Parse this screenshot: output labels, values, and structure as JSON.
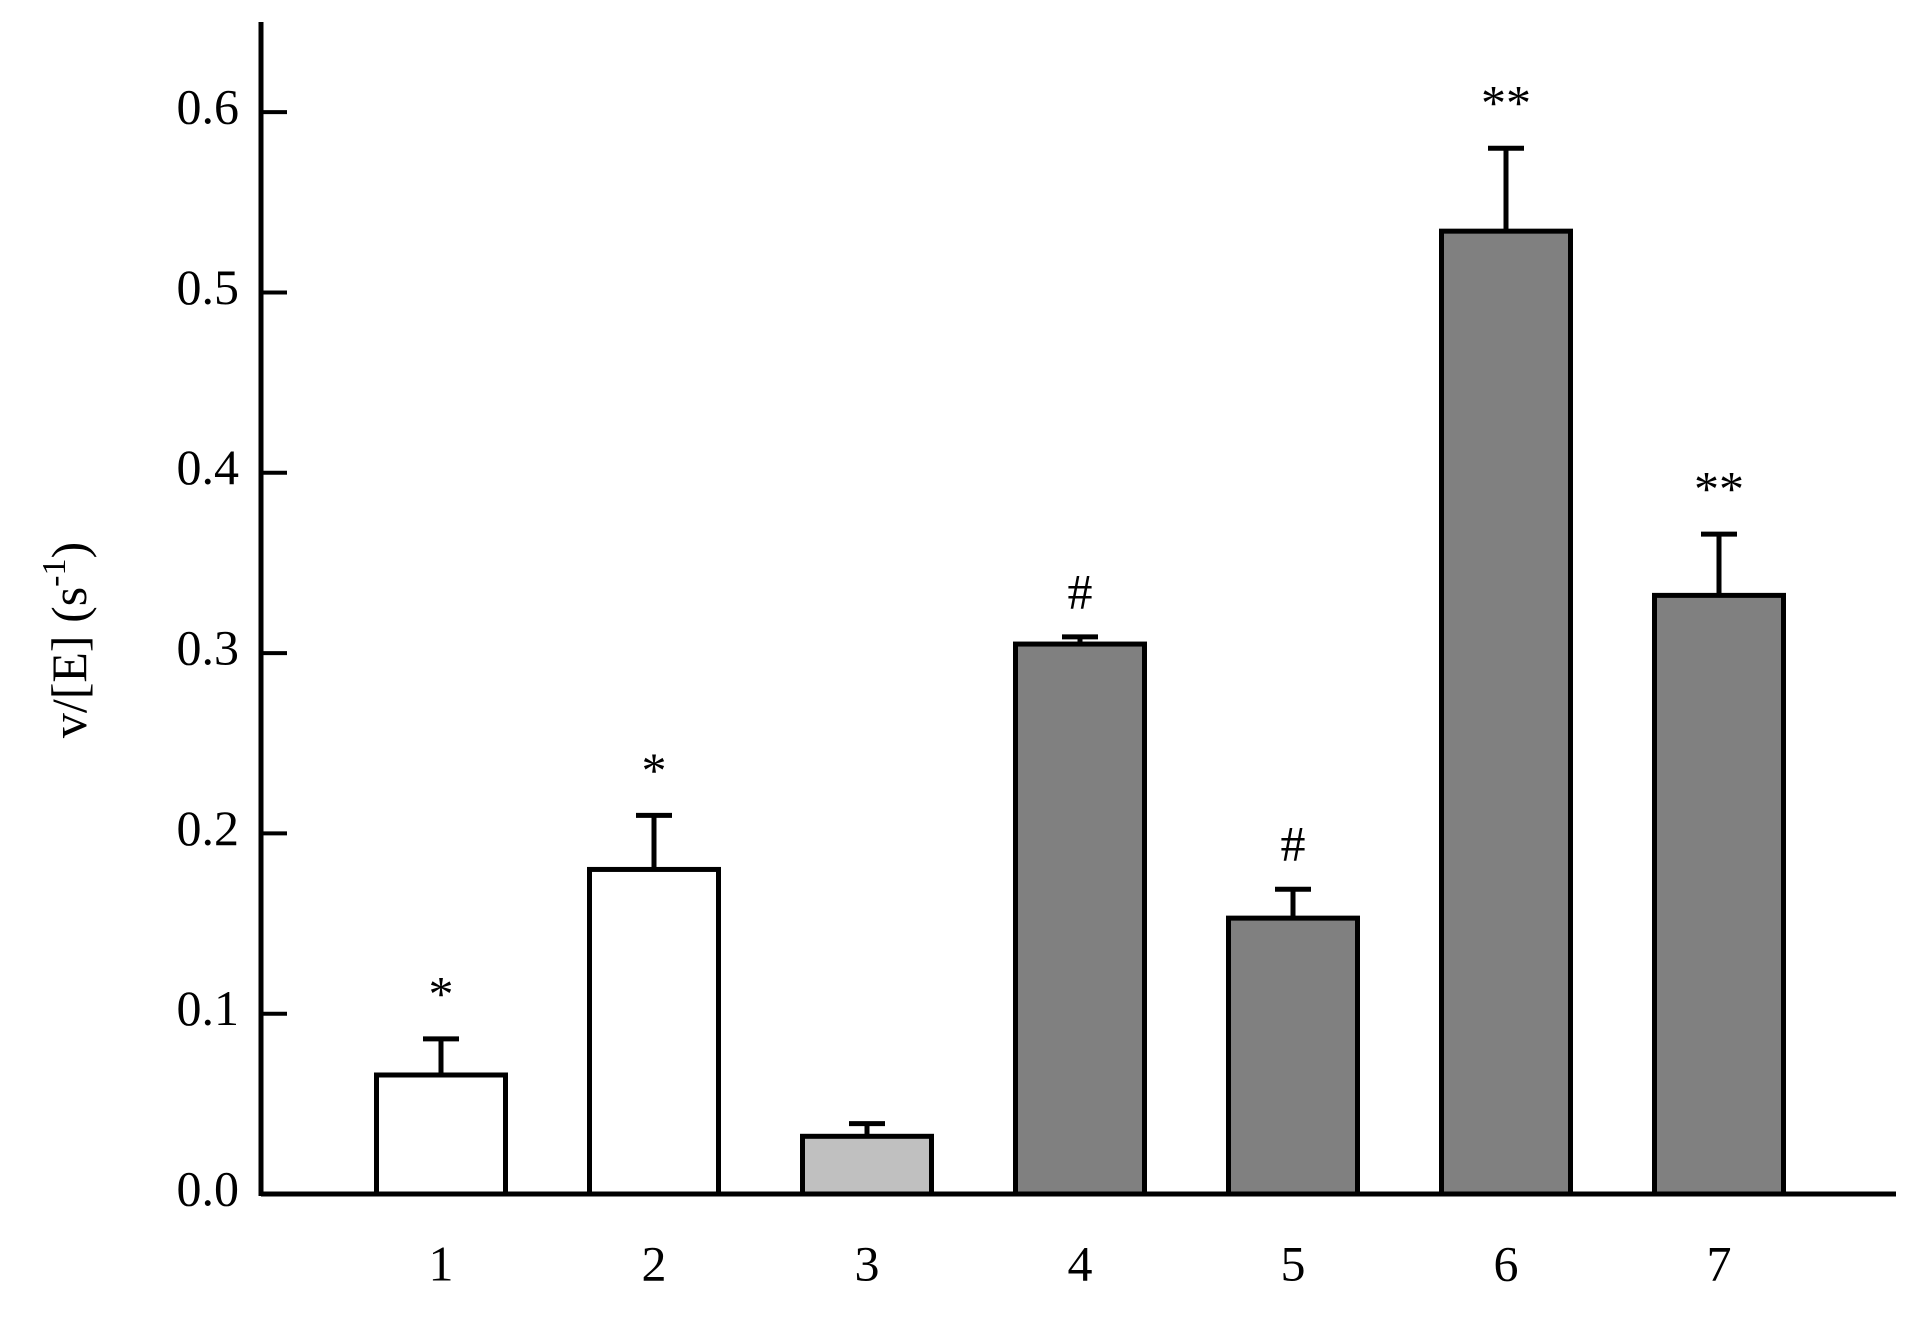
{
  "chart_data": {
    "type": "bar",
    "ylabel": "v/[E] (s",
    "ylabel_sup": "-1",
    "ylabel_end": ")",
    "categories": [
      "1",
      "2",
      "3",
      "4",
      "5",
      "6",
      "7"
    ],
    "values": [
      0.066,
      0.18,
      0.032,
      0.305,
      0.153,
      0.534,
      0.332
    ],
    "errors": [
      0.02,
      0.03,
      0.007,
      0.004,
      0.016,
      0.046,
      0.034
    ],
    "annotations": [
      "*",
      "*",
      null,
      "#",
      "#",
      "**",
      "**"
    ],
    "colors": [
      "#ffffff",
      "#ffffff",
      "#c0c0c0",
      "#808080",
      "#808080",
      "#808080",
      "#808080"
    ],
    "ylim": [
      0,
      0.65
    ],
    "yticks": [
      {
        "value": 0,
        "label": "0.0"
      },
      0.1,
      0.2,
      0.3,
      0.4,
      0.5,
      0.6
    ],
    "grid": false
  }
}
